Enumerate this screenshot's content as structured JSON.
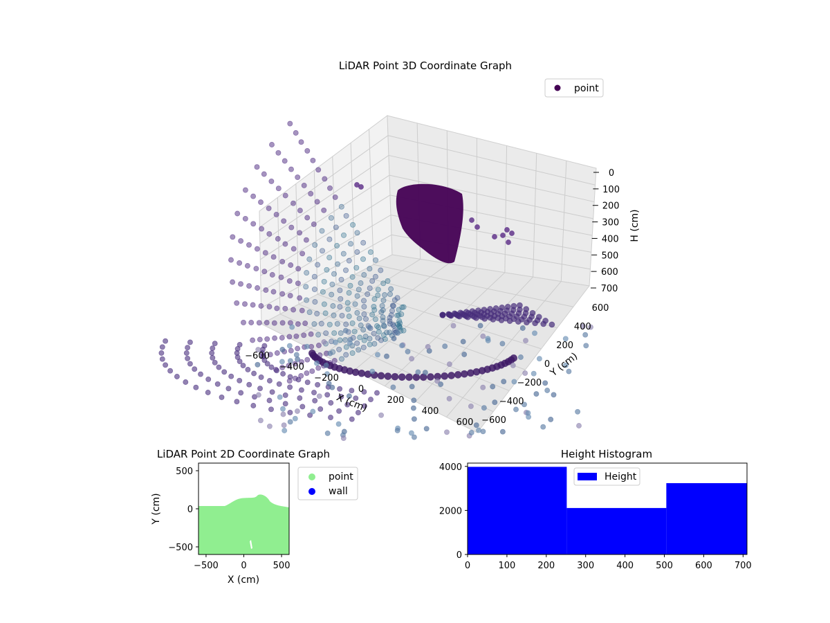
{
  "chart_data": [
    {
      "type": "scatter",
      "projection": "3d",
      "title": "LiDAR Point 3D Coordinate Graph",
      "xlabel": "X (cm)",
      "ylabel": "Y (cm)",
      "zlabel": "H (cm)",
      "xlim": [
        -700,
        700
      ],
      "ylim": [
        -700,
        700
      ],
      "zlim": [
        0,
        700
      ],
      "z_inverted": true,
      "x_ticks": [
        "−600",
        "−400",
        "−200",
        "0",
        "200",
        "400",
        "600"
      ],
      "y_ticks": [
        "−600",
        "−400",
        "−200",
        "0",
        "200",
        "400",
        "600"
      ],
      "z_ticks": [
        "0",
        "100",
        "200",
        "300",
        "400",
        "500",
        "600",
        "700"
      ],
      "series": [
        {
          "name": "point",
          "color": "#440154",
          "colormap": "viridis"
        }
      ],
      "legend": {
        "position": "top-right",
        "entries": [
          "point"
        ]
      },
      "grid": true
    },
    {
      "type": "scatter",
      "title": "LiDAR Point 2D Coordinate Graph",
      "xlabel": "X (cm)",
      "ylabel": "Y (cm)",
      "xlim": [
        -600,
        600
      ],
      "ylim": [
        -600,
        600
      ],
      "x_ticks": [
        "−500",
        "0",
        "500"
      ],
      "y_ticks": [
        "−500",
        "0",
        "500"
      ],
      "series": [
        {
          "name": "point",
          "color": "#90ee90"
        },
        {
          "name": "wall",
          "color": "#0000ff"
        }
      ],
      "legend": {
        "position": "outside-right",
        "entries": [
          "point",
          "wall"
        ]
      }
    },
    {
      "type": "bar",
      "subtype": "histogram",
      "title": "Height Histogram",
      "bins": [
        [
          0,
          252
        ],
        [
          252,
          505
        ],
        [
          505,
          710
        ]
      ],
      "values": [
        3980,
        2110,
        3240
      ],
      "xlim": [
        0,
        710
      ],
      "ylim": [
        0,
        4150
      ],
      "x_ticks": [
        "0",
        "100",
        "200",
        "300",
        "400",
        "500",
        "600",
        "700"
      ],
      "y_ticks": [
        "0",
        "2000",
        "4000"
      ],
      "series": [
        {
          "name": "Height",
          "color": "#0000ff"
        }
      ],
      "legend": {
        "position": "top-left",
        "entries": [
          "Height"
        ]
      }
    }
  ]
}
